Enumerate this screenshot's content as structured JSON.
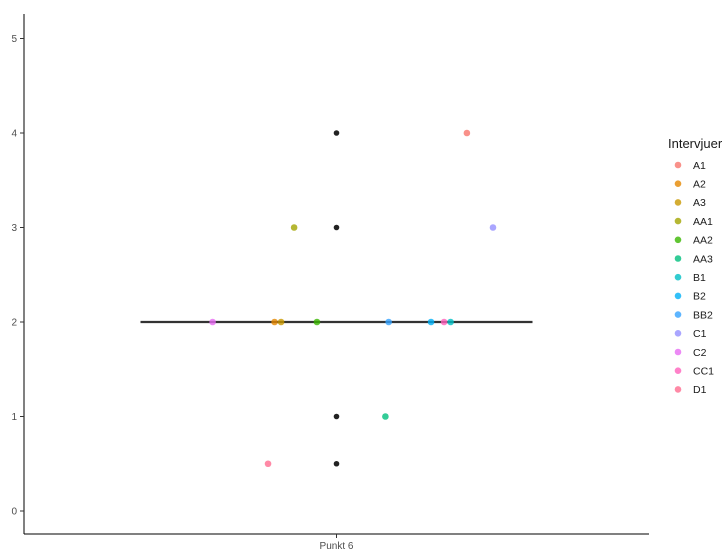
{
  "chart_data": {
    "type": "scatter",
    "title": "",
    "xlabel": "",
    "ylabel": "",
    "categories": [
      "Punkt 6"
    ],
    "ylim": [
      -0.25,
      5.25
    ],
    "y_ticks": [
      0,
      1,
      2,
      3,
      4,
      5
    ],
    "grid": false,
    "median_line": {
      "category": "Punkt 6",
      "value": 2,
      "color": "#333333"
    },
    "legend": {
      "title": "Intervjuer",
      "placement": "right"
    },
    "series": [
      {
        "name": "A1",
        "color": "#F8766D",
        "points": [
          {
            "x": 0.4,
            "y": 4
          }
        ]
      },
      {
        "name": "A2",
        "color": "#E58700",
        "points": [
          {
            "x": -0.19,
            "y": 2
          }
        ]
      },
      {
        "name": "A3",
        "color": "#C99800",
        "points": [
          {
            "x": -0.17,
            "y": 2
          }
        ]
      },
      {
        "name": "AA1",
        "color": "#A3A500",
        "points": [
          {
            "x": -0.13,
            "y": 3
          }
        ]
      },
      {
        "name": "AA2",
        "color": "#39B600",
        "points": [
          {
            "x": -0.06,
            "y": 2
          }
        ]
      },
      {
        "name": "AA3",
        "color": "#00BF7D",
        "points": [
          {
            "x": 0.15,
            "y": 1
          }
        ]
      },
      {
        "name": "B1",
        "color": "#00BFC4",
        "points": [
          {
            "x": 0.35,
            "y": 2
          }
        ]
      },
      {
        "name": "B2",
        "color": "#00B0F6",
        "points": [
          {
            "x": 0.29,
            "y": 2
          }
        ]
      },
      {
        "name": "BB2",
        "color": "#35A2FF",
        "points": [
          {
            "x": 0.16,
            "y": 2
          }
        ]
      },
      {
        "name": "C1",
        "color": "#9590FF",
        "points": [
          {
            "x": 0.48,
            "y": 3
          }
        ]
      },
      {
        "name": "C2",
        "color": "#E76BF3",
        "points": [
          {
            "x": -0.38,
            "y": 2
          }
        ]
      },
      {
        "name": "CC1",
        "color": "#FF62BC",
        "points": [
          {
            "x": 0.33,
            "y": 2
          }
        ]
      },
      {
        "name": "D1",
        "color": "#FF6C90",
        "points": [
          {
            "x": -0.21,
            "y": 0.5
          }
        ]
      }
    ],
    "outliers": {
      "color": "#222222",
      "points": [
        {
          "x": 0,
          "y": 4
        },
        {
          "x": 0,
          "y": 3
        },
        {
          "x": 0,
          "y": 1
        },
        {
          "x": 0,
          "y": 0.5
        }
      ]
    }
  }
}
